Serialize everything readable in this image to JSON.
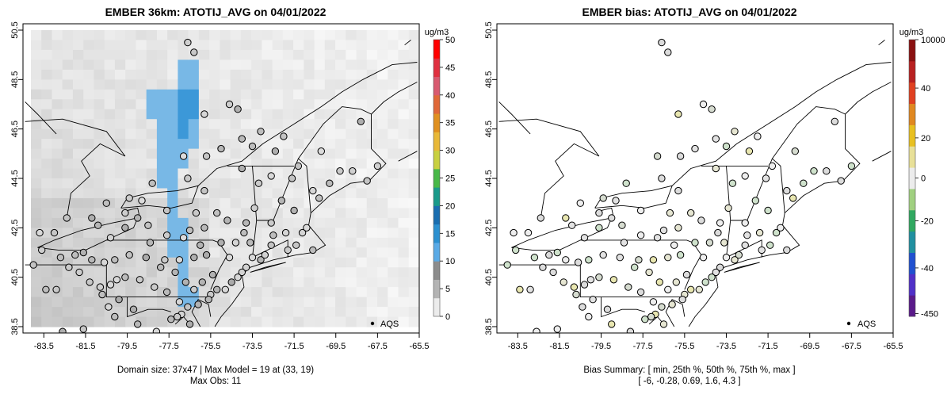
{
  "chart_data": [
    {
      "type": "map",
      "title": "EMBER 36km: ATOTIJ_AVG on 04/01/2022",
      "xlim": [
        -84.5,
        -65.5
      ],
      "ylim": [
        38.5,
        50.5
      ],
      "x_ticks": [
        "-83.5",
        "-81.5",
        "-79.5",
        "-77.5",
        "-75.5",
        "-73.5",
        "-71.5",
        "-69.5",
        "-67.5",
        "-65.5"
      ],
      "y_ticks": [
        "38.5",
        "40.5",
        "42.5",
        "44.5",
        "46.5",
        "48.5",
        "50.5"
      ],
      "colorbar": {
        "unit": "ug/m3",
        "labels": [
          "50",
          "45",
          "40",
          "35",
          "30",
          "25",
          "20",
          "15",
          "10",
          "5",
          "0"
        ],
        "range": [
          0,
          50
        ],
        "colors": [
          "#ececec",
          "#b4b4b4",
          "#8c8c8c",
          "#5aaae6",
          "#2c90d0",
          "#1a6eb0",
          "#1a9a8a",
          "#48b848",
          "#c8d040",
          "#e8b838",
          "#e09020",
          "#e06838",
          "#d85a70",
          "#e03040",
          "#ff0000"
        ]
      },
      "legend": "AQS",
      "footer": [
        "Domain size: 37x47 | Max Model = 19 at (33, 19)",
        "Max Obs: 11"
      ]
    },
    {
      "type": "map",
      "title": "EMBER bias: ATOTIJ_AVG on 04/01/2022",
      "xlim": [
        -84.5,
        -65.5
      ],
      "ylim": [
        38.5,
        50.5
      ],
      "x_ticks": [
        "-83.5",
        "-81.5",
        "-79.5",
        "-77.5",
        "-75.5",
        "-73.5",
        "-71.5",
        "-69.5",
        "-67.5",
        "-65.5"
      ],
      "y_ticks": [
        "38.5",
        "40.5",
        "42.5",
        "44.5",
        "46.5",
        "48.5",
        "50.5"
      ],
      "colorbar": {
        "unit": "ug/m3",
        "labels": [
          "10000",
          "40",
          "20",
          "0",
          "-20",
          "-40",
          "-450"
        ],
        "colors": [
          "#5a1a8a",
          "#5030c8",
          "#2050d0",
          "#2090a0",
          "#30a860",
          "#a0d080",
          "#ececec",
          "#e8e098",
          "#e8c020",
          "#e08820",
          "#e04020",
          "#b82020",
          "#8a1010"
        ]
      },
      "legend": "AQS",
      "footer": [
        "Bias Summary: [ min, 25th %, 50th %, 75th %, max ]",
        "[ -6,   -0.28,   0.69,   1.6,   4.3 ]"
      ],
      "bias_summary": {
        "min": -6,
        "p25": -0.28,
        "p50": 0.69,
        "p75": 1.6,
        "max": 4.3
      }
    }
  ],
  "site_lonlat": [
    [
      -76.6,
      50.0
    ],
    [
      -76.3,
      49.6
    ],
    [
      -74.6,
      47.5
    ],
    [
      -74.2,
      47.3
    ],
    [
      -73.5,
      45.8
    ],
    [
      -72.4,
      45.6
    ],
    [
      -69.8,
      44.3
    ],
    [
      -70.6,
      44.0
    ],
    [
      -71.5,
      43.2
    ],
    [
      -72.6,
      44.6
    ],
    [
      -73.4,
      43.3
    ],
    [
      -73.8,
      42.7
    ],
    [
      -73.9,
      42.3
    ],
    [
      -74.3,
      41.9
    ],
    [
      -73.5,
      41.3
    ],
    [
      -72.9,
      41.4
    ],
    [
      -72.6,
      41.8
    ],
    [
      -71.4,
      41.8
    ],
    [
      -71.1,
      42.3
    ],
    [
      -70.9,
      42.5
    ],
    [
      -71.9,
      42.3
    ],
    [
      -72.5,
      42.2
    ],
    [
      -73.1,
      41.2
    ],
    [
      -73.8,
      40.9
    ],
    [
      -74.0,
      40.7
    ],
    [
      -74.2,
      40.5
    ],
    [
      -74.5,
      40.3
    ],
    [
      -74.8,
      40.0
    ],
    [
      -75.2,
      40.0
    ],
    [
      -75.5,
      39.8
    ],
    [
      -75.6,
      39.6
    ],
    [
      -76.1,
      39.4
    ],
    [
      -76.6,
      39.3
    ],
    [
      -76.9,
      39.0
    ],
    [
      -77.1,
      38.9
    ],
    [
      -77.4,
      38.8
    ],
    [
      -76.5,
      38.6
    ],
    [
      -77.0,
      39.5
    ],
    [
      -77.6,
      39.9
    ],
    [
      -78.2,
      40.1
    ],
    [
      -78.9,
      40.4
    ],
    [
      -79.6,
      40.5
    ],
    [
      -80.0,
      40.4
    ],
    [
      -80.3,
      40.2
    ],
    [
      -80.8,
      40.1
    ],
    [
      -81.3,
      40.3
    ],
    [
      -81.8,
      40.7
    ],
    [
      -82.3,
      40.9
    ],
    [
      -82.9,
      40.0
    ],
    [
      -83.4,
      40.0
    ],
    [
      -83.6,
      41.6
    ],
    [
      -84.0,
      41.0
    ],
    [
      -82.7,
      41.3
    ],
    [
      -82.0,
      41.4
    ],
    [
      -81.6,
      41.5
    ],
    [
      -81.2,
      41.2
    ],
    [
      -80.6,
      41.1
    ],
    [
      -80.1,
      41.2
    ],
    [
      -79.4,
      41.4
    ],
    [
      -78.6,
      41.3
    ],
    [
      -77.7,
      41.2
    ],
    [
      -77.0,
      41.2
    ],
    [
      -76.3,
      41.3
    ],
    [
      -75.7,
      41.4
    ],
    [
      -75.4,
      40.6
    ],
    [
      -75.9,
      40.3
    ],
    [
      -76.3,
      40.0
    ],
    [
      -76.7,
      40.3
    ],
    [
      -77.2,
      40.7
    ],
    [
      -76.0,
      41.8
    ],
    [
      -76.8,
      42.1
    ],
    [
      -77.6,
      42.2
    ],
    [
      -78.5,
      42.6
    ],
    [
      -79.0,
      42.9
    ],
    [
      -79.6,
      42.5
    ],
    [
      -76.2,
      43.1
    ],
    [
      -75.2,
      43.1
    ],
    [
      -74.7,
      42.8
    ],
    [
      -76.6,
      44.5
    ],
    [
      -75.8,
      44.0
    ],
    [
      -76.8,
      45.4
    ],
    [
      -75.7,
      45.4
    ],
    [
      -75.0,
      45.7
    ],
    [
      -78.3,
      44.3
    ],
    [
      -79.4,
      43.7
    ],
    [
      -80.5,
      43.5
    ],
    [
      -81.2,
      42.9
    ],
    [
      -82.4,
      42.9
    ],
    [
      -83.0,
      42.3
    ],
    [
      -83.7,
      42.3
    ],
    [
      -82.6,
      38.3
    ],
    [
      -81.6,
      38.4
    ],
    [
      -80.1,
      38.9
    ],
    [
      -79.0,
      38.6
    ],
    [
      -78.1,
      38.3
    ],
    [
      -79.2,
      39.2
    ],
    [
      -79.9,
      39.6
    ],
    [
      -80.7,
      39.8
    ],
    [
      -80.4,
      39.3
    ],
    [
      -77.6,
      43.2
    ],
    [
      -78.8,
      43.6
    ],
    [
      -79.6,
      43.1
    ],
    [
      -80.3,
      42.1
    ],
    [
      -74.0,
      44.9
    ],
    [
      -73.2,
      44.3
    ],
    [
      -72.1,
      43.6
    ],
    [
      -71.6,
      44.5
    ],
    [
      -70.3,
      43.7
    ],
    [
      -69.3,
      44.8
    ],
    [
      -68.7,
      44.8
    ],
    [
      -68.0,
      44.4
    ],
    [
      -67.5,
      45.0
    ],
    [
      -68.3,
      46.8
    ],
    [
      -70.2,
      45.6
    ],
    [
      -71.3,
      45.0
    ],
    [
      -72.0,
      46.2
    ],
    [
      -74.0,
      46.1
    ],
    [
      -75.8,
      47.1
    ],
    [
      -73.1,
      46.4
    ],
    [
      -72.6,
      42.7
    ],
    [
      -71.8,
      41.6
    ],
    [
      -70.6,
      41.6
    ],
    [
      -73.6,
      41.9
    ],
    [
      -74.6,
      41.3
    ],
    [
      -75.0,
      41.9
    ],
    [
      -75.8,
      42.5
    ],
    [
      -76.5,
      42.4
    ],
    [
      -77.9,
      40.9
    ],
    [
      -78.4,
      41.9
    ],
    [
      -80.9,
      42.6
    ]
  ]
}
